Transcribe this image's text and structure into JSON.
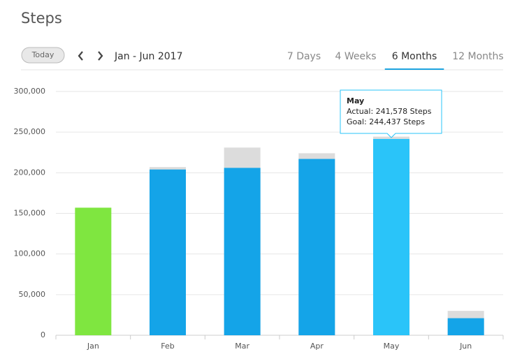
{
  "header": {
    "title": "Steps",
    "today_button": "Today",
    "range": "Jan - Jun 2017",
    "tabs": [
      "7 Days",
      "4 Weeks",
      "6 Months",
      "12 Months"
    ],
    "active_tab": "6 Months"
  },
  "chart_data": {
    "type": "bar",
    "categories": [
      "Jan",
      "Feb",
      "Mar",
      "Apr",
      "May",
      "Jun"
    ],
    "series": [
      {
        "color": "#dcdcdc",
        "values": [
          null,
          207000,
          231000,
          224000,
          244437,
          30000
        ]
      },
      {
        "color": "#14a4e8",
        "colors": [
          "#7fe640",
          "#14a4e8",
          "#14a4e8",
          "#14a4e8",
          "#2ac4f9",
          "#14a4e8"
        ],
        "values": [
          157000,
          204000,
          206000,
          217000,
          241578,
          21000
        ]
      }
    ],
    "ylim": [
      0,
      300000
    ],
    "yticks": [
      0,
      {
        "value": 50000,
        "label": "50,000"
      },
      {
        "value": 100000,
        "label": "100,000"
      },
      {
        "value": 150000,
        "label": "150,000"
      },
      {
        "value": 200000,
        "label": "200,000"
      },
      {
        "value": 250000,
        "label": "250,000"
      },
      {
        "value": 300000,
        "label": "300,000"
      }
    ],
    "grid": true,
    "tooltip": {
      "category": "May",
      "lines": [
        "Actual: 241,578 Steps",
        "Goal: 244,437 Steps"
      ]
    }
  }
}
